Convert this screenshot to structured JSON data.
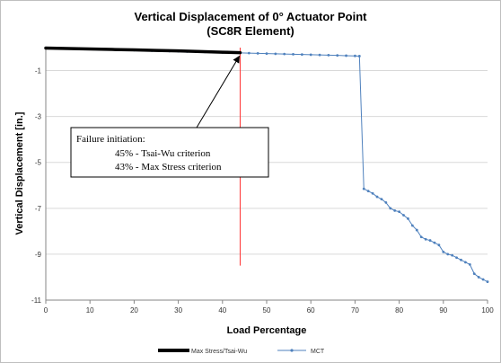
{
  "chart_data": {
    "type": "line",
    "title": "Vertical Displacement of 0° Actuator Point",
    "subtitle": "(SC8R Element)",
    "xlabel": "Load Percentage",
    "ylabel": "Vertical Displacement  [in.]",
    "xlim": [
      0,
      100
    ],
    "ylim": [
      -11,
      0
    ],
    "x_ticks": [
      "0",
      "10",
      "20",
      "30",
      "40",
      "50",
      "60",
      "70",
      "80",
      "90",
      "100"
    ],
    "y_ticks": [
      "-1",
      "-3",
      "-5",
      "-7",
      "-9",
      "-11"
    ],
    "grid": "horizontal",
    "legend_position": "bottom",
    "series": [
      {
        "name": "Max Stress/Tsai-Wu",
        "color": "#000000",
        "x": [
          0,
          5,
          10,
          15,
          20,
          25,
          30,
          35,
          40,
          44
        ],
        "y": [
          -0.02,
          -0.04,
          -0.06,
          -0.08,
          -0.1,
          -0.12,
          -0.14,
          -0.17,
          -0.2,
          -0.22
        ]
      },
      {
        "name": "MCT",
        "color": "#4f81bd",
        "x": [
          0,
          2,
          4,
          6,
          8,
          10,
          12,
          14,
          16,
          18,
          20,
          22,
          24,
          26,
          28,
          30,
          32,
          34,
          36,
          38,
          40,
          42,
          44,
          46,
          48,
          50,
          52,
          54,
          56,
          58,
          60,
          62,
          64,
          66,
          68,
          70,
          71,
          72,
          73,
          74,
          75,
          76,
          77,
          78,
          79,
          80,
          81,
          82,
          83,
          84,
          85,
          86,
          87,
          88,
          89,
          90,
          91,
          92,
          93,
          94,
          95,
          96,
          97,
          98,
          99,
          100
        ],
        "y": [
          -0.01,
          -0.02,
          -0.03,
          -0.04,
          -0.05,
          -0.06,
          -0.07,
          -0.08,
          -0.09,
          -0.1,
          -0.11,
          -0.12,
          -0.13,
          -0.14,
          -0.15,
          -0.16,
          -0.17,
          -0.18,
          -0.19,
          -0.2,
          -0.21,
          -0.22,
          -0.23,
          -0.24,
          -0.25,
          -0.26,
          -0.27,
          -0.28,
          -0.29,
          -0.3,
          -0.31,
          -0.32,
          -0.33,
          -0.34,
          -0.35,
          -0.36,
          -0.37,
          -6.15,
          -6.25,
          -6.35,
          -6.5,
          -6.6,
          -6.75,
          -7.0,
          -7.1,
          -7.15,
          -7.3,
          -7.45,
          -7.75,
          -7.95,
          -8.25,
          -8.35,
          -8.4,
          -8.5,
          -8.6,
          -8.9,
          -9.0,
          -9.05,
          -9.15,
          -9.25,
          -9.35,
          -9.45,
          -9.85,
          -10.0,
          -10.1,
          -10.2
        ]
      }
    ],
    "reference_line": {
      "x": 44,
      "y_from": 0,
      "y_to": -9.5,
      "color": "#ff3333"
    },
    "annotation": {
      "title": "Failure initiation:",
      "lines": [
        "45% - Tsai-Wu criterion",
        "43% - Max Stress criterion"
      ],
      "arrow_to": {
        "x": 44,
        "y": -0.3
      }
    }
  }
}
